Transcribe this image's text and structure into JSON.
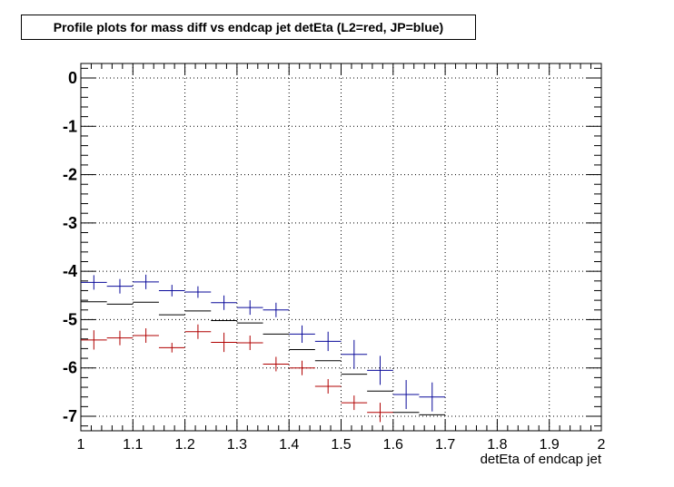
{
  "chart_data": {
    "type": "scatter",
    "title": "Profile plots for mass diff vs endcap jet detEta (L2=red, JP=blue)",
    "xlabel": "detEta of endcap jet",
    "ylabel": "",
    "xlim": [
      1.0,
      2.0
    ],
    "ylim": [
      -7.3,
      0.3
    ],
    "grid": true,
    "x_ticks": [
      "1",
      "1.1",
      "1.2",
      "1.3",
      "1.4",
      "1.5",
      "1.6",
      "1.7",
      "1.8",
      "1.9",
      "2"
    ],
    "y_ticks": [
      "0",
      "-1",
      "-2",
      "-3",
      "-4",
      "-5",
      "-6",
      "-7"
    ],
    "series": [
      {
        "color": "#0a0a9a",
        "bin_width": 0.05,
        "x": [
          1.025,
          1.075,
          1.125,
          1.175,
          1.225,
          1.275,
          1.325,
          1.375,
          1.425,
          1.475,
          1.525,
          1.575,
          1.625,
          1.675
        ],
        "y": [
          -4.23,
          -4.31,
          -4.22,
          -4.4,
          -4.43,
          -4.65,
          -4.75,
          -4.8,
          -5.3,
          -5.45,
          -5.72,
          -6.05,
          -6.55,
          -6.6
        ],
        "err": [
          0.15,
          0.15,
          0.15,
          0.12,
          0.12,
          0.15,
          0.15,
          0.15,
          0.18,
          0.2,
          0.3,
          0.3,
          0.3,
          0.3
        ]
      },
      {
        "color": "#000000",
        "bin_width": 0.05,
        "x": [
          1.025,
          1.075,
          1.125,
          1.175,
          1.225,
          1.275,
          1.325,
          1.375,
          1.425,
          1.475,
          1.525,
          1.575,
          1.625,
          1.675
        ],
        "y": [
          -4.63,
          -4.68,
          -4.64,
          -4.9,
          -4.82,
          -5.02,
          -5.07,
          -5.3,
          -5.62,
          -5.85,
          -6.13,
          -6.48,
          -6.92,
          -6.97
        ],
        "err": [
          0,
          0,
          0,
          0,
          0,
          0,
          0,
          0,
          0,
          0,
          0,
          0,
          0,
          0
        ]
      },
      {
        "color": "#b00000",
        "bin_width": 0.05,
        "x": [
          1.025,
          1.075,
          1.125,
          1.175,
          1.225,
          1.275,
          1.325,
          1.375,
          1.425,
          1.475,
          1.525,
          1.575
        ],
        "y": [
          -5.42,
          -5.38,
          -5.33,
          -5.58,
          -5.25,
          -5.47,
          -5.48,
          -5.92,
          -6.0,
          -6.38,
          -6.72,
          -6.92
        ],
        "err": [
          0.2,
          0.15,
          0.15,
          0.1,
          0.15,
          0.2,
          0.15,
          0.15,
          0.15,
          0.15,
          0.15,
          0.2
        ]
      }
    ]
  }
}
